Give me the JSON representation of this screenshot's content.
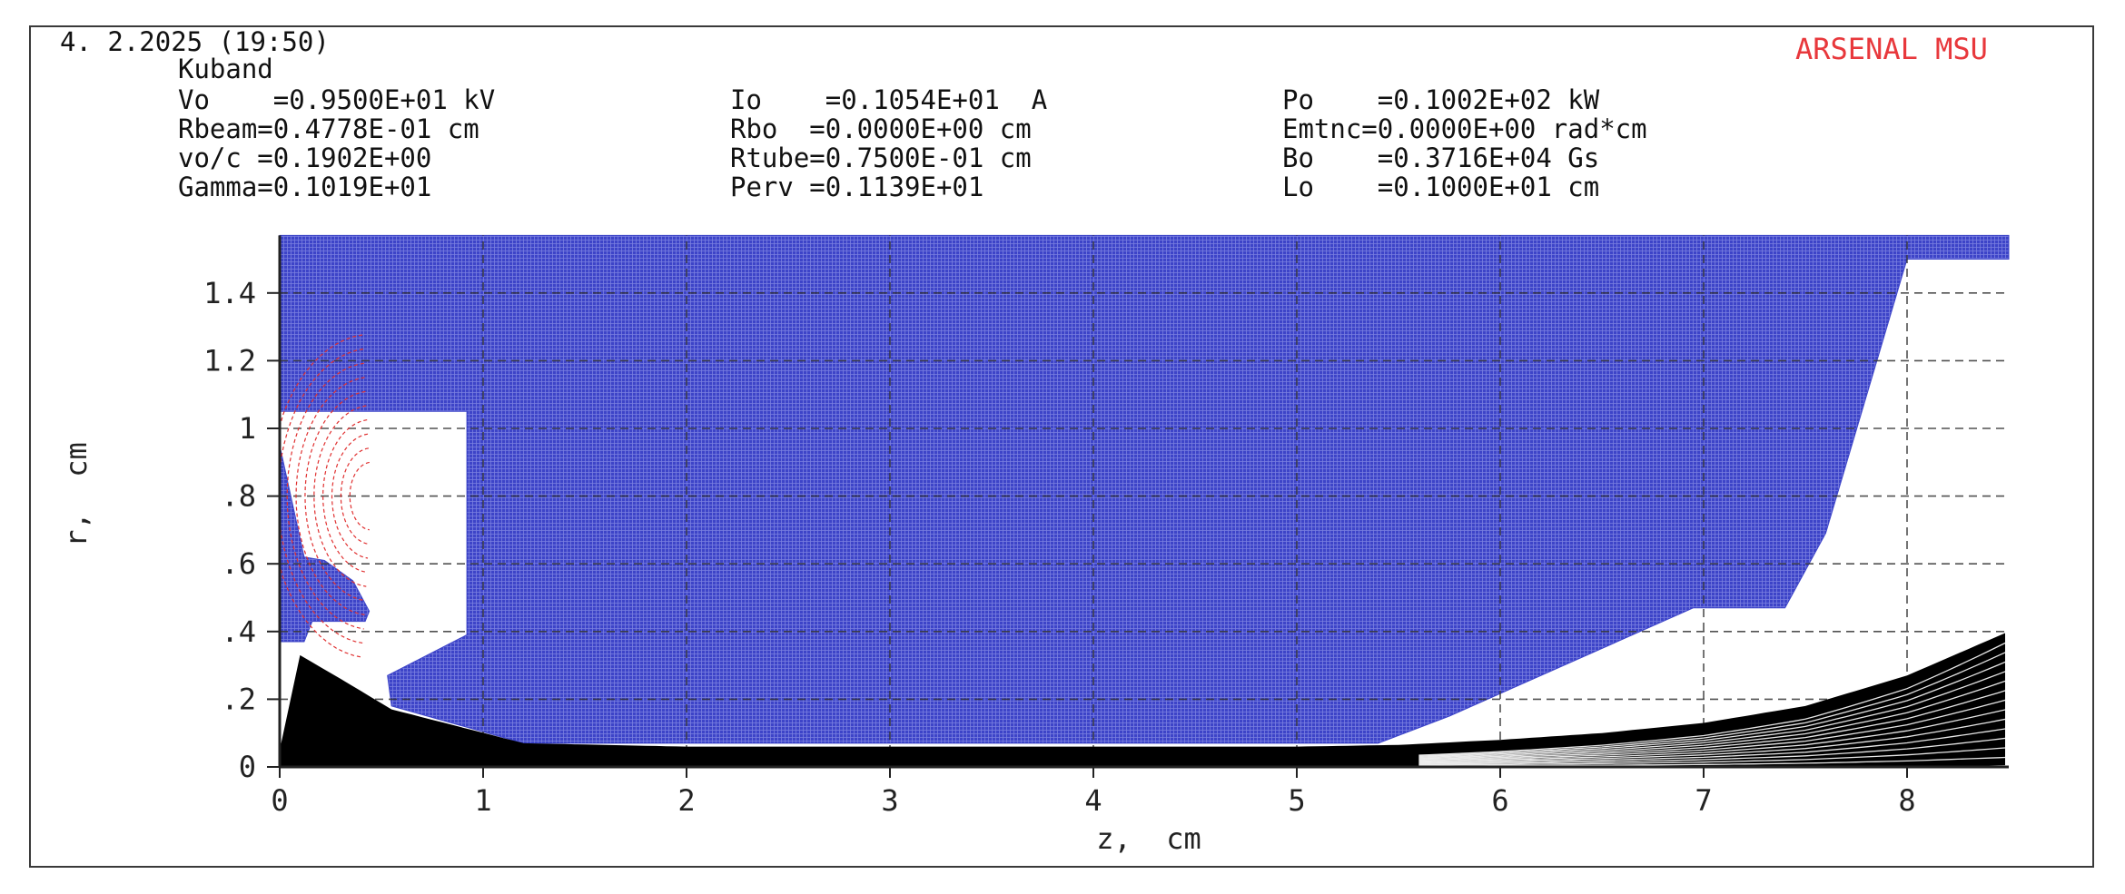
{
  "header": {
    "date": "4. 2.2025 (19:50)",
    "name": "Kuband",
    "brand": "ARSENAL MSU",
    "brand_color": "#e8383c",
    "params": [
      [
        "Vo    =0.9500E+01 kV",
        "Io    =0.1054E+01  A",
        "Po    =0.1002E+02 kW"
      ],
      [
        "Rbeam=0.4778E-01 cm",
        "Rbo  =0.0000E+00 cm",
        "Emtnc=0.0000E+00 rad*cm"
      ],
      [
        "vo/c =0.1902E+00",
        "Rtube=0.7500E-01 cm",
        "Bo    =0.3716E+04 Gs"
      ],
      [
        "Gamma=0.1019E+01",
        "Perv =0.1139E+01",
        "Lo    =0.1000E+01 cm"
      ]
    ]
  },
  "chart_data": {
    "type": "area",
    "xlabel": "z,  cm",
    "ylabel": "r,  cm",
    "xlim": [
      0,
      8.5
    ],
    "ylim": [
      0,
      1.57
    ],
    "x_ticks": [
      0,
      1,
      2,
      3,
      4,
      5,
      6,
      7,
      8
    ],
    "x_tick_labels": [
      "0",
      "1",
      "2",
      "3",
      "4",
      "5",
      "6",
      "7",
      "8"
    ],
    "y_ticks": [
      0,
      0.2,
      0.4,
      0.6,
      0.8,
      1.0,
      1.2,
      1.4
    ],
    "y_tick_labels": [
      "0",
      ".2",
      ".4",
      ".6",
      ".8",
      "1",
      "1.2",
      "1.4"
    ],
    "grid": "dashed",
    "colors": {
      "electrode": "#3d44c8",
      "field_lines": "#e03030",
      "trajectories": "#000000"
    },
    "electrode_boundary": [
      [
        0,
        1.57
      ],
      [
        8.5,
        1.57
      ],
      [
        8.5,
        1.5
      ],
      [
        8.0,
        1.5
      ],
      [
        7.6,
        0.69
      ],
      [
        7.4,
        0.47
      ],
      [
        6.95,
        0.47
      ],
      [
        5.75,
        0.15
      ],
      [
        5.4,
        0.07
      ],
      [
        1.2,
        0.07
      ],
      [
        0.55,
        0.18
      ],
      [
        0.53,
        0.27
      ],
      [
        0.92,
        0.39
      ],
      [
        0.92,
        1.05
      ],
      [
        0,
        1.05
      ],
      [
        0,
        0.95
      ],
      [
        0.12,
        0.62
      ],
      [
        0.22,
        0.61
      ],
      [
        0.36,
        0.55
      ],
      [
        0.44,
        0.46
      ],
      [
        0.42,
        0.43
      ],
      [
        0.16,
        0.43
      ],
      [
        0.12,
        0.37
      ],
      [
        0,
        0.37
      ]
    ],
    "beam_envelope": {
      "z": [
        0,
        0.1,
        0.3,
        0.55,
        1.2,
        2,
        3,
        4,
        5,
        5.5,
        6,
        6.5,
        7,
        7.5,
        8,
        8.5
      ],
      "r_outer": [
        0.05,
        0.33,
        0.26,
        0.17,
        0.07,
        0.06,
        0.06,
        0.06,
        0.06,
        0.065,
        0.08,
        0.1,
        0.13,
        0.18,
        0.27,
        0.4
      ],
      "r_inner": [
        0,
        0,
        0,
        0,
        0,
        0,
        0,
        0,
        0,
        0,
        0,
        0,
        0,
        0,
        0,
        0.005
      ]
    },
    "field_lines": {
      "count": 10,
      "center": [
        0.45,
        0.8
      ]
    }
  }
}
